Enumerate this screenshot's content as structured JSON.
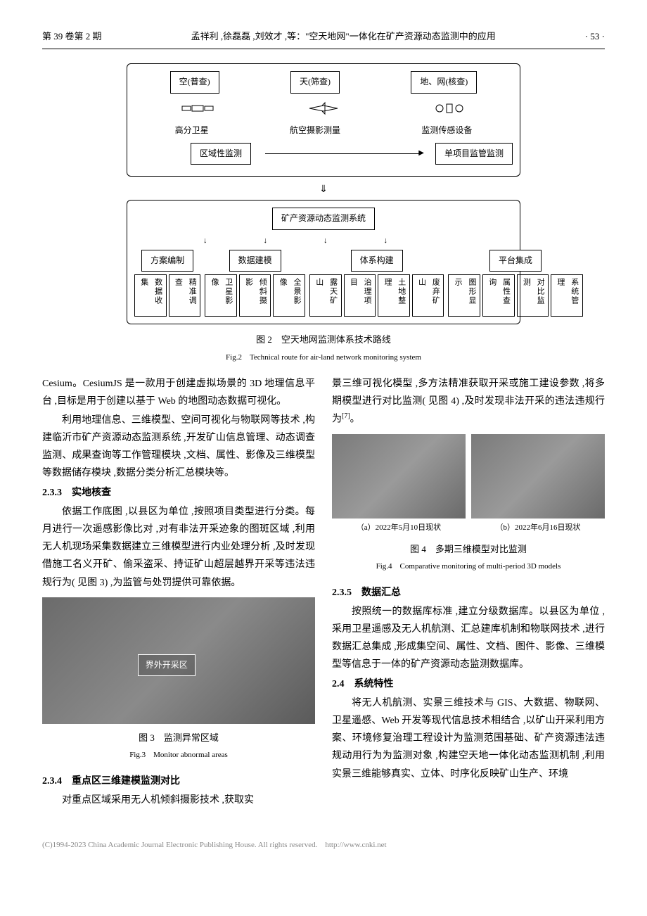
{
  "header": {
    "left": "第 39 卷第 2 期",
    "center": "孟祥利 ,徐磊磊 ,刘效才 ,等：\"空天地网\"一体化在矿产资源动态监测中的应用",
    "right": "· 53 ·"
  },
  "flowchart": {
    "top_groups": [
      {
        "label": "空(普查)",
        "sub": "高分卫星"
      },
      {
        "label": "天(筛查)",
        "sub": "航空摄影测量"
      },
      {
        "label": "地、网(核查)",
        "sub": "监测传感设备"
      }
    ],
    "mid_left": "区域性监测",
    "mid_right": "单项目监管监测",
    "system": "矿产资源动态监测系统",
    "branches": [
      {
        "label": "方案编制",
        "items": [
          "数据收集",
          "精准调查"
        ]
      },
      {
        "label": "数据建模",
        "items": [
          "卫星影像",
          "倾斜摄影",
          "全景影像"
        ]
      },
      {
        "label": "体系构建",
        "items": [
          "露天矿山",
          "治理项目",
          "土地整理",
          "废弃矿山"
        ]
      },
      {
        "label": "平台集成",
        "items": [
          "图形显示",
          "属性查询",
          "对比监测",
          "系统管理"
        ]
      }
    ]
  },
  "fig2": {
    "cn": "图 2　空天地网监测体系技术路线",
    "en": "Fig.2　Technical route for air-land network monitoring system"
  },
  "left_col": {
    "p1": "Cesium。CesiumJS 是一款用于创建虚拟场景的 3D 地理信息平台 ,目标是用于创建以基于 Web 的地图动态数据可视化。",
    "p2": "利用地理信息、三维模型、空间可视化与物联网等技术 ,构建临沂市矿产资源动态监测系统 ,开发矿山信息管理、动态调查监测、成果查询等工作管理模块 ,文档、属性、影像及三维模型等数据储存模块 ,数据分类分析汇总模块等。",
    "s233": "2.3.3　实地核查",
    "p3": "依据工作底图 ,以县区为单位 ,按照项目类型进行分类。每月进行一次遥感影像比对 ,对有非法开采迹象的图斑区域 ,利用无人机现场采集数据建立三维模型进行内业处理分析 ,及时发现借施工名义开矿、偷采盗采、持证矿山超层越界开采等违法违规行为( 见图 3) ,为监管与处罚提供可靠依据。",
    "fig3_annot": "界外开采区",
    "fig3_cn": "图 3　监测异常区域",
    "fig3_en": "Fig.3　Monitor abnormal areas",
    "s234": "2.3.4　重点区三维建模监测对比",
    "p4": "对重点区域采用无人机倾斜摄影技术 ,获取实"
  },
  "right_col": {
    "p1": "景三维可视化模型 ,多方法精准获取开采或施工建设参数 ,将多期模型进行对比监测( 见图 4) ,及时发现非法开采的违法违规行为",
    "p1_ref": "[7]",
    "p1_end": "。",
    "fig4_a": "（a）2022年5月10日现状",
    "fig4_b": "（b）2022年6月16日现状",
    "fig4_cn": "图 4　多期三维模型对比监测",
    "fig4_en": "Fig.4　Comparative monitoring of multi-period 3D models",
    "s235": "2.3.5　数据汇总",
    "p2": "按照统一的数据库标准 ,建立分级数据库。以县区为单位 ,采用卫星遥感及无人机航测、汇总建库机制和物联网技术 ,进行数据汇总集成 ,形成集空间、属性、文档、图件、影像、三维模型等信息于一体的矿产资源动态监测数据库。",
    "s24": "2.4　系统特性",
    "p3": "将无人机航测、实景三维技术与 GIS、大数据、物联网、卫星遥感、Web 开发等现代信息技术相结合 ,以矿山开采利用方案、环境修复治理工程设计为监测范围基础、矿产资源违法违规动用行为为监测对象 ,构建空天地一体化动态监测机制 ,利用实景三维能够真实、立体、时序化反映矿山生产、环境"
  },
  "footer": "(C)1994-2023 China Academic Journal Electronic Publishing House. All rights reserved.　http://www.cnki.net"
}
